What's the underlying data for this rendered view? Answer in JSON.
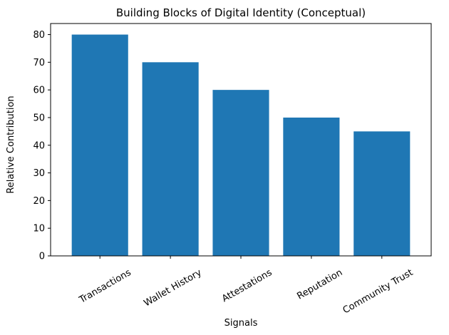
{
  "chart_data": {
    "type": "bar",
    "title": "Building Blocks of Digital Identity (Conceptual)",
    "xlabel": "Signals",
    "ylabel": "Relative Contribution",
    "categories": [
      "Transactions",
      "Wallet History",
      "Attestations",
      "Reputation",
      "Community Trust"
    ],
    "values": [
      80,
      70,
      60,
      50,
      45
    ],
    "ylim": [
      0,
      84
    ],
    "yticks": [
      0,
      10,
      20,
      30,
      40,
      50,
      60,
      70,
      80
    ],
    "xtick_rotation_deg": 30,
    "grid": false,
    "legend": "none",
    "bar_color": "#1f77b4"
  }
}
